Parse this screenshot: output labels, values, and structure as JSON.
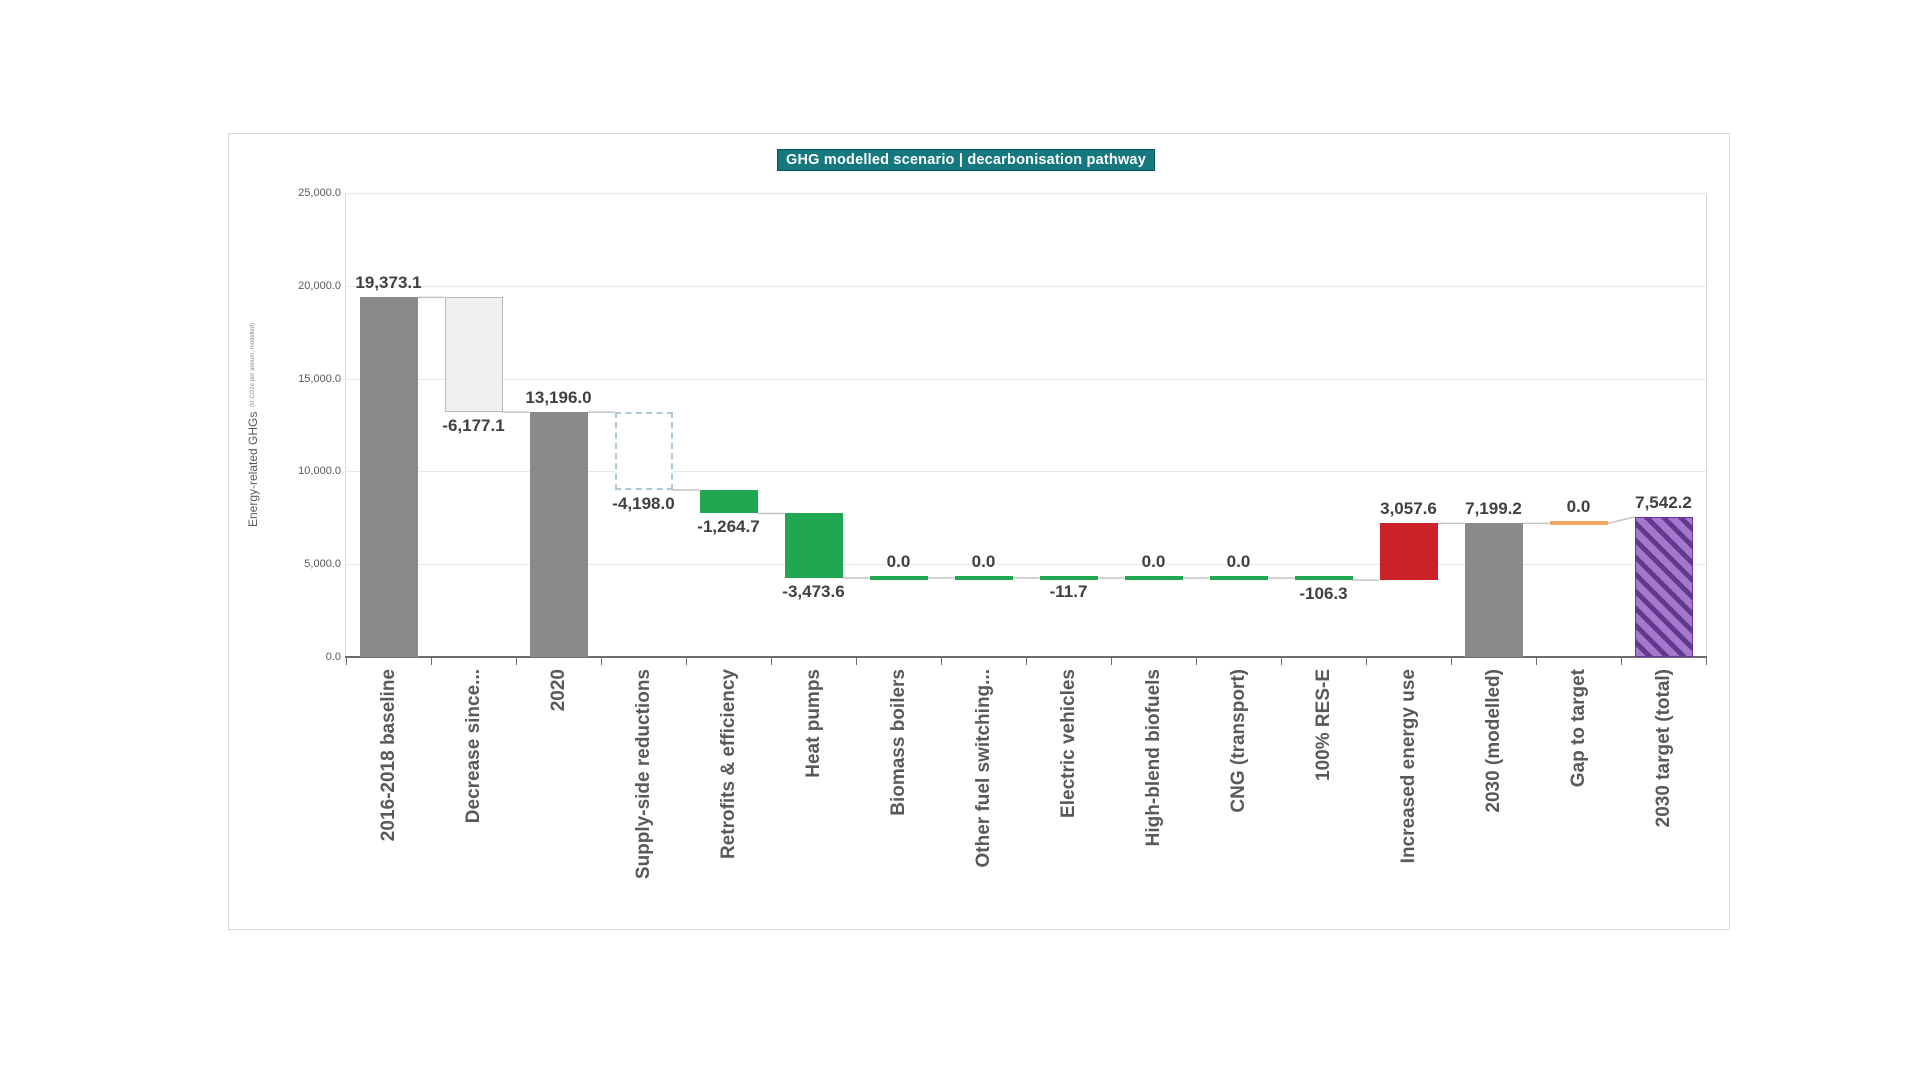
{
  "title": "GHG modelled scenario | decarbonisation pathway",
  "colors": {
    "title_bg": "#15787e",
    "title_border": "#0a545b",
    "bar_gray": "#8a8a8a",
    "bar_ghost_fill": "#f0f0f0",
    "bar_ghost_border": "#b8b8b8",
    "bar_dashed_border": "#a9c8da",
    "bar_green": "#1fa850",
    "bar_red": "#cb2128",
    "bar_orange": "#eda964",
    "bar_purple_light": "#a478cd",
    "bar_purple_dark": "#63398f",
    "bar_purple_border": "#7030a0",
    "connector": "#c4c4c4",
    "grid": "#e9e9e9",
    "axis": "#6e6e6e",
    "value_label_text": "#404040",
    "category_label_text": "#595959"
  },
  "y_axis": {
    "title": "Energy-related GHGs",
    "title_note": "(kt CO2e per annum, modelled)",
    "tick_labels": [
      "25,000.0",
      "20,000.0",
      "15,000.0",
      "10,000.0",
      "5,000.0",
      "0.0"
    ]
  },
  "chart_data": {
    "type": "bar",
    "subtype": "waterfall",
    "title": "GHG modelled scenario | decarbonisation pathway",
    "ylabel": "Energy-related GHGs",
    "ylim": [
      0,
      25000
    ],
    "grid": true,
    "legend": false,
    "categories": [
      "2016-2018 baseline",
      "Decrease since...",
      "2020",
      "Supply-side reductions",
      "Retrofits & efficiency",
      "Heat pumps",
      "Biomass boilers",
      "Other fuel switching...",
      "Electric vehicles",
      "High-blend biofuels",
      "CNG (transport)",
      "100% RES-E",
      "Increased energy use",
      "2030 (modelled)",
      "Gap to target",
      "2030 target (total)"
    ],
    "values": [
      19373.1,
      -6177.1,
      13196.0,
      -4198.0,
      -1264.7,
      -3473.6,
      0.0,
      0.0,
      -11.7,
      0.0,
      0.0,
      -106.3,
      3057.6,
      7199.2,
      0.0,
      7542.2
    ],
    "bars": [
      {
        "label": "2016-2018 baseline",
        "display": "19,373.1",
        "value": 19373.1,
        "base": 0,
        "top": 19373.1,
        "after": 19373.1,
        "attach": 19373.1,
        "style": "gray",
        "label_pos": "above"
      },
      {
        "label": "Decrease since...",
        "display": "-6,177.1",
        "value": -6177.1,
        "base": 13196.0,
        "top": 19373.1,
        "after": 13196.0,
        "attach": 19373.1,
        "style": "ghost",
        "label_pos": "below"
      },
      {
        "label": "2020",
        "display": "13,196.0",
        "value": 13196.0,
        "base": 0,
        "top": 13196.0,
        "after": 13196.0,
        "attach": 13196.0,
        "style": "gray",
        "label_pos": "above"
      },
      {
        "label": "Supply-side reductions",
        "display": "-4,198.0",
        "value": -4198.0,
        "base": 8998.0,
        "top": 13196.0,
        "after": 8998.0,
        "attach": 13196.0,
        "style": "dashed",
        "label_pos": "below"
      },
      {
        "label": "Retrofits & efficiency",
        "display": "-1,264.7",
        "value": -1264.7,
        "base": 7733.3,
        "top": 8998.0,
        "after": 7733.3,
        "attach": 8998.0,
        "style": "green",
        "label_pos": "below"
      },
      {
        "label": "Heat pumps",
        "display": "-3,473.6",
        "value": -3473.6,
        "base": 4259.7,
        "top": 7733.3,
        "after": 4259.7,
        "attach": 7733.3,
        "style": "green",
        "label_pos": "below"
      },
      {
        "label": "Biomass boilers",
        "display": "0.0",
        "value": 0.0,
        "base": 4259.7,
        "top": 4259.7,
        "after": 4259.7,
        "attach": 4259.7,
        "style": "green-thin",
        "label_pos": "above"
      },
      {
        "label": "Other fuel switching...",
        "display": "0.0",
        "value": 0.0,
        "base": 4259.7,
        "top": 4259.7,
        "after": 4259.7,
        "attach": 4259.7,
        "style": "green-thin",
        "label_pos": "above"
      },
      {
        "label": "Electric vehicles",
        "display": "-11.7",
        "value": -11.7,
        "base": 4248.0,
        "top": 4259.7,
        "after": 4248.0,
        "attach": 4259.7,
        "style": "green-thin",
        "label_pos": "below"
      },
      {
        "label": "High-blend biofuels",
        "display": "0.0",
        "value": 0.0,
        "base": 4248.0,
        "top": 4248.0,
        "after": 4248.0,
        "attach": 4248.0,
        "style": "green-thin",
        "label_pos": "above"
      },
      {
        "label": "CNG (transport)",
        "display": "0.0",
        "value": 0.0,
        "base": 4248.0,
        "top": 4248.0,
        "after": 4248.0,
        "attach": 4248.0,
        "style": "green-thin",
        "label_pos": "above"
      },
      {
        "label": "100% RES-E",
        "display": "-106.3",
        "value": -106.3,
        "base": 4141.7,
        "top": 4248.0,
        "after": 4141.7,
        "attach": 4248.0,
        "style": "green-thin",
        "label_pos": "below"
      },
      {
        "label": "Increased energy use",
        "display": "3,057.6",
        "value": 3057.6,
        "base": 4141.7,
        "top": 7199.2,
        "after": 7199.2,
        "attach": 4141.7,
        "style": "red",
        "label_pos": "above"
      },
      {
        "label": "2030 (modelled)",
        "display": "7,199.2",
        "value": 7199.2,
        "base": 0,
        "top": 7199.2,
        "after": 7199.2,
        "attach": 7199.2,
        "style": "gray",
        "label_pos": "above"
      },
      {
        "label": "Gap to target",
        "display": "0.0",
        "value": 0.0,
        "base": 7199.2,
        "top": 7199.2,
        "after": 7199.2,
        "attach": 7199.2,
        "style": "orange-thin",
        "label_pos": "above"
      },
      {
        "label": "2030 target (total)",
        "display": "7,542.2",
        "value": 7542.2,
        "base": 0,
        "top": 7542.2,
        "after": 7542.2,
        "attach": 7542.2,
        "style": "purple",
        "label_pos": "above"
      }
    ]
  }
}
